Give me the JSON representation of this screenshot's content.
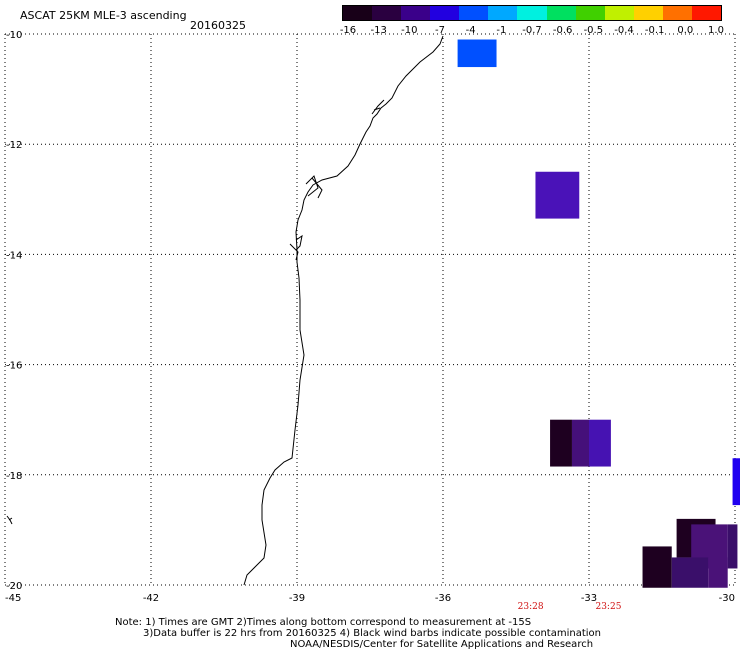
{
  "header": {
    "title": "ASCAT 25KM MLE-3 ascending",
    "date": "20160325"
  },
  "colorbar": {
    "labels": [
      "-16",
      "-13",
      "-10",
      "-7",
      "-4",
      "-1",
      "-0.7",
      "-0.6",
      "-0.5",
      "-0.4",
      "-0.1",
      "0.0",
      "1.0"
    ],
    "colors": [
      "#180018",
      "#2a0040",
      "#3a008a",
      "#2200e0",
      "#0050ff",
      "#00a8ff",
      "#00f0e0",
      "#00e060",
      "#40d000",
      "#c0f000",
      "#ffd000",
      "#ff7000",
      "#ff1800"
    ]
  },
  "axes": {
    "lon_labels": [
      "-45",
      "-42",
      "-39",
      "-36",
      "-33",
      "-30"
    ],
    "lat_labels": [
      "-10",
      "-12",
      "-14",
      "-16",
      "-18",
      "-20"
    ],
    "lon_range": [
      -45,
      -30
    ],
    "lat_range": [
      -20,
      -10
    ]
  },
  "time_labels": [
    {
      "text": "23:28",
      "lon": -34.2
    },
    {
      "text": "23:25",
      "lon": -32.6
    }
  ],
  "data_cells": [
    {
      "lon0": -35.7,
      "lon1": -34.9,
      "lat0": -10.1,
      "lat1": -10.6,
      "color": "#0050ff"
    },
    {
      "lon0": -34.1,
      "lon1": -33.2,
      "lat0": -12.5,
      "lat1": -13.35,
      "color": "#4a12b8"
    },
    {
      "lon0": -33.8,
      "lon1": -33.35,
      "lat0": -17.0,
      "lat1": -17.85,
      "color": "#1e0020"
    },
    {
      "lon0": -33.35,
      "lon1": -33.0,
      "lat0": -17.0,
      "lat1": -17.85,
      "color": "#45107a"
    },
    {
      "lon0": -33.0,
      "lon1": -32.55,
      "lat0": -17.0,
      "lat1": -17.85,
      "color": "#4612b2"
    },
    {
      "lon0": -30.05,
      "lon1": -29.7,
      "lat0": -17.7,
      "lat1": -18.55,
      "color": "#2000f0"
    },
    {
      "lon0": -31.2,
      "lon1": -30.4,
      "lat0": -18.8,
      "lat1": -19.5,
      "color": "#1e0020"
    },
    {
      "lon0": -30.9,
      "lon1": -30.15,
      "lat0": -18.9,
      "lat1": -19.7,
      "color": "#4a1278"
    },
    {
      "lon0": -30.15,
      "lon1": -29.95,
      "lat0": -18.9,
      "lat1": -19.7,
      "color": "#3a0f6a"
    },
    {
      "lon0": -31.9,
      "lon1": -31.3,
      "lat0": -19.3,
      "lat1": -20.05,
      "color": "#1e0020"
    },
    {
      "lon0": -31.3,
      "lon1": -30.55,
      "lat0": -19.5,
      "lat1": -20.05,
      "color": "#3a0f6a"
    },
    {
      "lon0": -30.55,
      "lon1": -30.15,
      "lat0": -19.5,
      "lat1": -20.05,
      "color": "#4a1278"
    }
  ],
  "notes": {
    "line1": "Note: 1) Times are GMT 2)Times along bottom correspond to measurement at -15S",
    "line2": "3)Data buffer is 22 hrs from 20160325 4) Black wind barbs indicate possible contamination",
    "line3": "NOAA/NESDIS/Center for Satellite Applications and Research"
  }
}
